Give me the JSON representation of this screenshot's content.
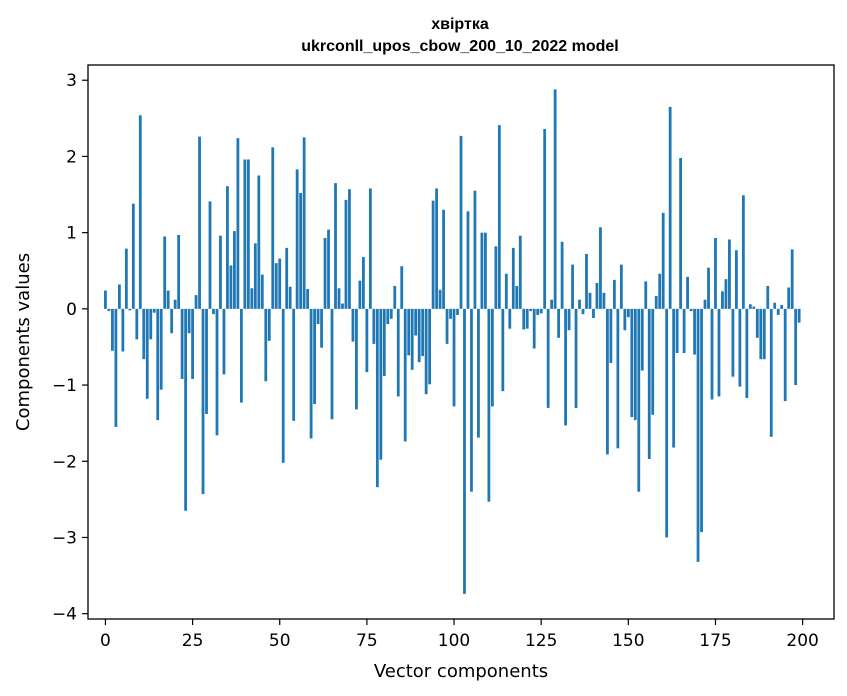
{
  "chart_data": {
    "type": "bar",
    "title": "хвіртка",
    "subtitle": "ukrconll_upos_cbow_200_10_2022 model",
    "xlabel": "Vector components",
    "ylabel": "Components values",
    "xlim": [
      -5,
      209
    ],
    "ylim": [
      -4.07,
      3.2
    ],
    "xticks": [
      0,
      25,
      50,
      75,
      100,
      125,
      150,
      175,
      200
    ],
    "yticks": [
      -4,
      -3,
      -2,
      -1,
      0,
      1,
      2,
      3
    ],
    "xtick_labels": [
      "0",
      "25",
      "50",
      "75",
      "100",
      "125",
      "150",
      "175",
      "200"
    ],
    "ytick_labels": [
      "−4",
      "−3",
      "−2",
      "−1",
      "0",
      "1",
      "2",
      "3"
    ],
    "bar_color": "#1f77b4",
    "grid": false,
    "x": [
      0,
      1,
      2,
      3,
      4,
      5,
      6,
      7,
      8,
      9,
      10,
      11,
      12,
      13,
      14,
      15,
      16,
      17,
      18,
      19,
      20,
      21,
      22,
      23,
      24,
      25,
      26,
      27,
      28,
      29,
      30,
      31,
      32,
      33,
      34,
      35,
      36,
      37,
      38,
      39,
      40,
      41,
      42,
      43,
      44,
      45,
      46,
      47,
      48,
      49,
      50,
      51,
      52,
      53,
      54,
      55,
      56,
      57,
      58,
      59,
      60,
      61,
      62,
      63,
      64,
      65,
      66,
      67,
      68,
      69,
      70,
      71,
      72,
      73,
      74,
      75,
      76,
      77,
      78,
      79,
      80,
      81,
      82,
      83,
      84,
      85,
      86,
      87,
      88,
      89,
      90,
      91,
      92,
      93,
      94,
      95,
      96,
      97,
      98,
      99,
      100,
      101,
      102,
      103,
      104,
      105,
      106,
      107,
      108,
      109,
      110,
      111,
      112,
      113,
      114,
      115,
      116,
      117,
      118,
      119,
      120,
      121,
      122,
      123,
      124,
      125,
      126,
      127,
      128,
      129,
      130,
      131,
      132,
      133,
      134,
      135,
      136,
      137,
      138,
      139,
      140,
      141,
      142,
      143,
      144,
      145,
      146,
      147,
      148,
      149,
      150,
      151,
      152,
      153,
      154,
      155,
      156,
      157,
      158,
      159,
      160,
      161,
      162,
      163,
      164,
      165,
      166,
      167,
      168,
      169,
      170,
      171,
      172,
      173,
      174,
      175,
      176,
      177,
      178,
      179,
      180,
      181,
      182,
      183,
      184,
      185,
      186,
      187,
      188,
      189,
      190,
      191,
      192,
      193,
      194,
      195,
      196,
      197,
      198,
      199
    ],
    "values": [
      0.24,
      -0.03,
      -0.55,
      -1.55,
      0.32,
      -0.56,
      0.79,
      -0.02,
      1.38,
      -0.4,
      2.54,
      -0.66,
      -1.18,
      -0.4,
      -0.05,
      -1.46,
      -1.06,
      0.95,
      0.24,
      -0.32,
      0.12,
      0.97,
      -0.92,
      -2.65,
      -0.32,
      -0.92,
      0.18,
      2.26,
      -2.43,
      -1.38,
      1.41,
      -0.07,
      -1.66,
      0.96,
      -0.86,
      1.61,
      0.57,
      1.02,
      2.24,
      -1.23,
      1.96,
      1.96,
      0.27,
      0.86,
      1.75,
      0.45,
      -0.95,
      -0.42,
      2.12,
      0.6,
      0.66,
      -2.02,
      0.8,
      0.29,
      -1.47,
      1.83,
      1.52,
      2.25,
      0.26,
      -1.7,
      -1.25,
      -0.2,
      -0.51,
      0.93,
      1.04,
      -1.45,
      1.65,
      0.27,
      0.07,
      1.43,
      1.57,
      -0.43,
      -1.32,
      0.37,
      0.68,
      -0.83,
      1.58,
      -0.46,
      -2.34,
      -1.98,
      -0.88,
      -0.2,
      -0.13,
      0.3,
      -1.15,
      0.56,
      -1.74,
      -0.61,
      -0.8,
      -0.35,
      -0.7,
      -0.62,
      -1.12,
      -0.99,
      1.42,
      1.58,
      0.25,
      1.3,
      -0.46,
      -0.13,
      -1.28,
      -0.08,
      2.27,
      -3.74,
      1.28,
      -2.4,
      1.55,
      -1.69,
      1.0,
      1.0,
      -2.53,
      -1.28,
      0.82,
      2.41,
      -1.08,
      0.46,
      -0.26,
      0.8,
      0.3,
      0.96,
      -0.27,
      -0.26,
      -0.03,
      -0.52,
      -0.08,
      -0.06,
      2.36,
      -1.3,
      0.12,
      2.88,
      -0.38,
      0.88,
      -1.53,
      -0.28,
      0.58,
      -1.3,
      0.12,
      -0.07,
      0.72,
      0.21,
      -0.12,
      0.34,
      1.07,
      0.21,
      -1.91,
      -0.71,
      0.38,
      -1.83,
      0.58,
      -0.28,
      -0.11,
      -1.42,
      -1.46,
      -2.4,
      -0.81,
      0.36,
      -1.97,
      -1.39,
      0.17,
      0.46,
      1.26,
      -3.0,
      2.65,
      -1.82,
      -0.58,
      1.98,
      -0.58,
      0.42,
      -0.03,
      -0.6,
      -3.32,
      -2.93,
      0.12,
      0.54,
      -1.19,
      0.93,
      -1.15,
      0.23,
      0.39,
      0.91,
      -0.89,
      0.77,
      -1.02,
      1.49,
      -1.17,
      0.06,
      0.03,
      -0.38,
      -0.66,
      -0.66,
      0.3,
      -1.68,
      0.08,
      -0.08,
      0.05,
      -1.21,
      0.28,
      0.78,
      -1.0,
      -0.18
    ]
  }
}
